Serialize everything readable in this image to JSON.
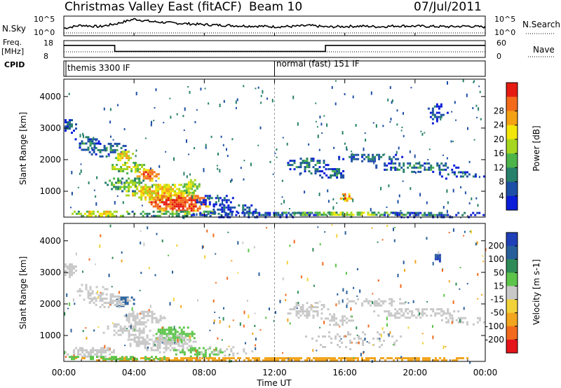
{
  "header": {
    "title": "Christmas Valley East (fitACF)",
    "beam": "Beam 10",
    "date": "07/Jul/2011"
  },
  "sky": {
    "left_label": "N.Sky",
    "right_label": "N.Search",
    "ticks": [
      "10^5",
      "10^0"
    ],
    "series": [
      2,
      3,
      2.5,
      3.5,
      5,
      4.2,
      3.8,
      3.5,
      3.2,
      3.0,
      2.8,
      2.7,
      2.5,
      2.6,
      2.9,
      2.4,
      2.6,
      2.7,
      2.5,
      2.8,
      2.7,
      2.6,
      2.5,
      2.7,
      2.4
    ]
  },
  "freq": {
    "left_label_1": "Freq.",
    "left_label_2": "[MHz]",
    "right_label": "Nave",
    "left_ticks": [
      "18",
      "8"
    ],
    "right_ticks": [
      "60",
      "0"
    ],
    "steps": [
      {
        "start": 0,
        "end": 2.9,
        "level": 16
      },
      {
        "start": 2.9,
        "end": 14.9,
        "level": 11
      },
      {
        "start": 14.9,
        "end": 24,
        "level": 16
      }
    ],
    "nave": 20
  },
  "cpid": {
    "label": "CPID",
    "modes": [
      {
        "start": 0,
        "text": "themis 3300 IF"
      },
      {
        "start": 12,
        "text": "normal (fast) 151 IF"
      }
    ]
  },
  "ylabel": "Slant Range [km]",
  "xlabel": "Time UT",
  "xticks": [
    "00:00",
    "04:00",
    "08:00",
    "12:00",
    "16:00",
    "20:00",
    "00:00"
  ],
  "yticks": [
    "1000",
    "2000",
    "3000",
    "4000"
  ],
  "power": {
    "label": "Power [dB]",
    "ticks": [
      "4",
      "8",
      "12",
      "16",
      "20",
      "24",
      "28"
    ],
    "colors": [
      "#0a1dd8",
      "#1e4fa6",
      "#27806a",
      "#4db44a",
      "#a6d620",
      "#f2e60a",
      "#f4a114",
      "#f36a1b",
      "#e51b12"
    ]
  },
  "velocity": {
    "label": "Velocity [m s-1]",
    "ticks": [
      "200",
      "100",
      "50",
      "15",
      "-15",
      "-50",
      "-100",
      "-200"
    ],
    "colors": [
      "#1f3fb8",
      "#285f9a",
      "#2e8b57",
      "#5cc44a",
      "#c8c8c8",
      "#f2d23a",
      "#f2a51e",
      "#f26a1d",
      "#e5141a"
    ]
  },
  "chart_data": {
    "type": "heatmap",
    "title": "Christmas Valley East (fitACF)",
    "xlabel": "Time UT",
    "ylabel": "Slant Range [km]",
    "xlim": [
      0,
      24
    ],
    "ylim": [
      180,
      4550
    ],
    "panels": [
      {
        "name": "Power [dB]",
        "scale": [
          0,
          32
        ],
        "blobs": [
          {
            "t": 0.3,
            "r": 3100,
            "dt": 0.4,
            "dr": 250,
            "v": 7,
            "d": 0.8
          },
          {
            "t": 1.3,
            "r": 2550,
            "dt": 0.8,
            "dr": 260,
            "v": 8,
            "d": 0.6
          },
          {
            "t": 2.5,
            "r": 2350,
            "dt": 1.2,
            "dr": 250,
            "v": 10,
            "d": 0.7
          },
          {
            "t": 3.4,
            "r": 2150,
            "dt": 0.6,
            "dr": 200,
            "v": 20,
            "d": 0.9
          },
          {
            "t": 3.6,
            "r": 1800,
            "dt": 1.0,
            "dr": 200,
            "v": 18,
            "d": 0.8
          },
          {
            "t": 4.7,
            "r": 1550,
            "dt": 0.8,
            "dr": 220,
            "v": 26,
            "d": 0.9
          },
          {
            "t": 3.5,
            "r": 1250,
            "dt": 1.3,
            "dr": 250,
            "v": 15,
            "d": 0.7
          },
          {
            "t": 5.4,
            "r": 1000,
            "dt": 2.0,
            "dr": 300,
            "v": 22,
            "d": 0.9
          },
          {
            "t": 6.5,
            "r": 650,
            "dt": 1.8,
            "dr": 300,
            "v": 30,
            "d": 0.95
          },
          {
            "t": 7.2,
            "r": 1150,
            "dt": 0.5,
            "dr": 300,
            "v": 17,
            "d": 0.8
          },
          {
            "t": 8.6,
            "r": 750,
            "dt": 1.3,
            "dr": 200,
            "v": 6,
            "d": 0.6
          },
          {
            "t": 9.8,
            "r": 500,
            "dt": 1.8,
            "dr": 150,
            "v": 6,
            "d": 0.5
          },
          {
            "t": 2.0,
            "r": 330,
            "dt": 1.8,
            "dr": 120,
            "v": 20,
            "d": 0.8
          },
          {
            "t": 6.5,
            "r": 330,
            "dt": 3.0,
            "dr": 120,
            "v": 14,
            "d": 0.7
          },
          {
            "t": 11.0,
            "r": 300,
            "dt": 4.0,
            "dr": 110,
            "v": 6,
            "d": 0.7
          },
          {
            "t": 16.0,
            "r": 320,
            "dt": 4.0,
            "dr": 100,
            "v": 16,
            "d": 0.8
          },
          {
            "t": 21.0,
            "r": 300,
            "dt": 3.5,
            "dr": 110,
            "v": 7,
            "d": 0.6
          },
          {
            "t": 13.8,
            "r": 1850,
            "dt": 1.2,
            "dr": 280,
            "v": 9,
            "d": 0.6
          },
          {
            "t": 15.3,
            "r": 1600,
            "dt": 1.0,
            "dr": 200,
            "v": 8,
            "d": 0.5
          },
          {
            "t": 16.0,
            "r": 850,
            "dt": 0.4,
            "dr": 150,
            "v": 26,
            "d": 0.8
          },
          {
            "t": 17.5,
            "r": 2100,
            "dt": 2.0,
            "dr": 150,
            "v": 8,
            "d": 0.6
          },
          {
            "t": 20.0,
            "r": 1800,
            "dt": 2.5,
            "dr": 180,
            "v": 9,
            "d": 0.6
          },
          {
            "t": 22.5,
            "r": 1550,
            "dt": 1.5,
            "dr": 150,
            "v": 6,
            "d": 0.5
          },
          {
            "t": 21.2,
            "r": 3500,
            "dt": 0.6,
            "dr": 350,
            "v": 6,
            "d": 0.5
          }
        ]
      },
      {
        "name": "Velocity [m s-1]",
        "scale": [
          -250,
          250
        ],
        "blobs": [
          {
            "t": 0.3,
            "r": 3100,
            "dt": 0.4,
            "dr": 250,
            "v": 0,
            "d": 0.8
          },
          {
            "t": 1.5,
            "r": 2400,
            "dt": 1.0,
            "dr": 300,
            "v": 5,
            "d": 0.6
          },
          {
            "t": 3.3,
            "r": 2100,
            "dt": 0.8,
            "dr": 200,
            "v": 120,
            "d": 0.7
          },
          {
            "t": 2.5,
            "r": 2150,
            "dt": 1.2,
            "dr": 250,
            "v": 0,
            "d": 0.6
          },
          {
            "t": 4.5,
            "r": 1600,
            "dt": 1.2,
            "dr": 250,
            "v": 0,
            "d": 0.7
          },
          {
            "t": 3.5,
            "r": 1200,
            "dt": 1.4,
            "dr": 250,
            "v": 5,
            "d": 0.6
          },
          {
            "t": 6.3,
            "r": 1050,
            "dt": 1.2,
            "dr": 300,
            "v": 40,
            "d": 0.8
          },
          {
            "t": 5.5,
            "r": 800,
            "dt": 2.0,
            "dr": 300,
            "v": 0,
            "d": 0.8
          },
          {
            "t": 7.6,
            "r": 500,
            "dt": 1.5,
            "dr": 200,
            "v": 30,
            "d": 0.7
          },
          {
            "t": 9.3,
            "r": 550,
            "dt": 1.5,
            "dr": 180,
            "v": 0,
            "d": 0.5
          },
          {
            "t": 1.5,
            "r": 500,
            "dt": 1.5,
            "dr": 200,
            "v": 0,
            "d": 0.7
          },
          {
            "t": 12.0,
            "r": 290,
            "dt": 12.0,
            "dr": 90,
            "v": -60,
            "d": 0.85
          },
          {
            "t": 3.0,
            "r": 320,
            "dt": 3.0,
            "dr": 100,
            "v": 30,
            "d": 0.6
          },
          {
            "t": 13.8,
            "r": 1850,
            "dt": 1.2,
            "dr": 280,
            "v": 0,
            "d": 0.6
          },
          {
            "t": 15.5,
            "r": 1550,
            "dt": 1.0,
            "dr": 220,
            "v": 0,
            "d": 0.5
          },
          {
            "t": 17.5,
            "r": 2100,
            "dt": 2.0,
            "dr": 150,
            "v": 0,
            "d": 0.6
          },
          {
            "t": 20.0,
            "r": 1750,
            "dt": 2.5,
            "dr": 180,
            "v": 0,
            "d": 0.6
          },
          {
            "t": 22.5,
            "r": 1500,
            "dt": 1.5,
            "dr": 150,
            "v": 0,
            "d": 0.5
          },
          {
            "t": 21.3,
            "r": 3500,
            "dt": 0.3,
            "dr": 150,
            "v": 200,
            "d": 0.8
          },
          {
            "t": 16.5,
            "r": 900,
            "dt": 3.0,
            "dr": 300,
            "v": 0,
            "d": 0.3
          }
        ]
      }
    ]
  }
}
